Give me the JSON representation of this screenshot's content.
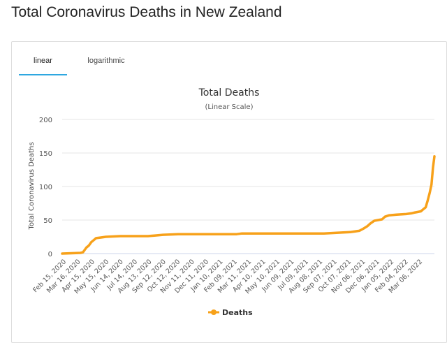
{
  "page": {
    "title": "Total Coronavirus Deaths in New Zealand"
  },
  "tabs": [
    {
      "label": "linear",
      "active": true
    },
    {
      "label": "logarithmic",
      "active": false
    }
  ],
  "chart_data": {
    "type": "line",
    "title": "Total Deaths",
    "subtitle": "(Linear Scale)",
    "xlabel": "",
    "ylabel": "Total Coronavirus Deaths",
    "ylim": [
      0,
      200
    ],
    "yticks": [
      0,
      50,
      100,
      150,
      200
    ],
    "grid": true,
    "legend": "bottom-center",
    "x_tick_labels": [
      "Feb 15, 2020",
      "Mar 16, 2020",
      "Apr 15, 2020",
      "May 15, 2020",
      "Jun 14, 2020",
      "Jul 14, 2020",
      "Aug 13, 2020",
      "Sep 12, 2020",
      "Oct 12, 2020",
      "Nov 11, 2020",
      "Dec 11, 2020",
      "Jan 10, 2021",
      "Feb 09, 2021",
      "Mar 11, 2021",
      "Apr 10, 2021",
      "May 10, 2021",
      "Jun 09, 2021",
      "Jul 09, 2021",
      "Aug 08, 2021",
      "Sep 07, 2021",
      "Oct 07, 2021",
      "Nov 06, 2021",
      "Dec 06, 2021",
      "Jan 05, 2022",
      "Feb 04, 2022",
      "Mar 06, 2022"
    ],
    "series": [
      {
        "name": "Deaths",
        "color": "#f7a11a",
        "x": [
          "2020-02-15",
          "2020-03-24",
          "2020-03-29",
          "2020-04-05",
          "2020-04-10",
          "2020-04-15",
          "2020-04-20",
          "2020-04-25",
          "2020-05-05",
          "2020-05-15",
          "2020-06-14",
          "2020-08-10",
          "2020-08-25",
          "2020-09-10",
          "2020-10-12",
          "2020-12-11",
          "2021-02-09",
          "2021-02-20",
          "2021-04-10",
          "2021-06-09",
          "2021-08-08",
          "2021-09-03",
          "2021-10-01",
          "2021-10-20",
          "2021-10-28",
          "2021-11-06",
          "2021-11-12",
          "2021-11-20",
          "2021-12-06",
          "2021-12-12",
          "2021-12-20",
          "2022-01-05",
          "2022-01-25",
          "2022-02-04",
          "2022-02-10",
          "2022-02-17",
          "2022-02-24",
          "2022-03-01",
          "2022-03-06",
          "2022-03-10",
          "2022-03-14",
          "2022-03-18",
          "2022-03-21",
          "2022-03-24"
        ],
        "values": [
          0,
          1,
          2,
          9,
          12,
          17,
          20,
          23,
          24,
          25,
          26,
          26,
          27,
          28,
          29,
          29,
          29,
          30,
          30,
          30,
          30,
          31,
          32,
          34,
          37,
          41,
          45,
          49,
          51,
          55,
          57,
          58,
          59,
          60,
          61,
          62,
          63,
          66,
          69,
          79,
          90,
          103,
          128,
          145
        ]
      }
    ]
  }
}
